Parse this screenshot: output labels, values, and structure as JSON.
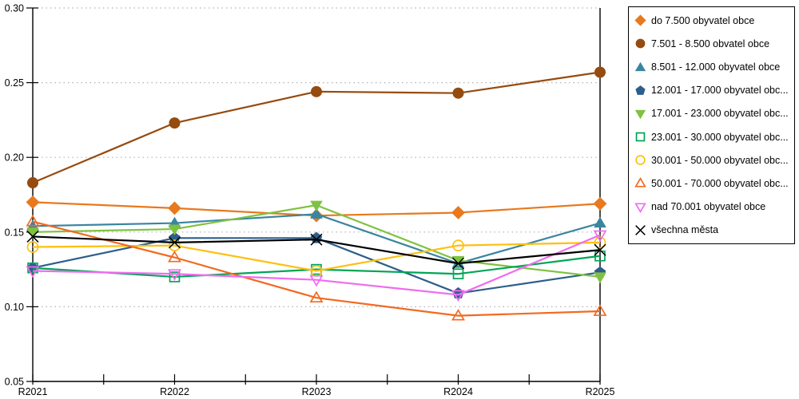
{
  "chart_data": {
    "type": "line",
    "title": "",
    "xlabel": "",
    "ylabel": "",
    "x_categories": [
      "R2021",
      "R2022",
      "R2023",
      "R2024",
      "R2025"
    ],
    "y_axis": {
      "min": 0.05,
      "max": 0.3,
      "tick_step": 0.05,
      "tick_labels": [
        "0.05",
        "0.10",
        "0.15",
        "0.20",
        "0.25",
        "0.30"
      ]
    },
    "grid": "horizontal-dotted",
    "grid_color": "#b0b0b0",
    "axis_color": "#000000",
    "legend_position": "outside-top-right",
    "series": [
      {
        "label": "do 7.500 obyvatel obce",
        "color": "#E8791E",
        "marker": "diamond",
        "fill": "filled",
        "values": [
          0.17,
          0.166,
          0.161,
          0.163,
          0.169
        ]
      },
      {
        "label": "7.501 - 8.500 obvatel obce",
        "color": "#964B0F",
        "marker": "circle",
        "fill": "filled",
        "values": [
          0.183,
          0.223,
          0.244,
          0.243,
          0.257
        ]
      },
      {
        "label": "8.501 - 12.000 obyvatel obce",
        "color": "#3A86A0",
        "marker": "triangle-up",
        "fill": "filled",
        "values": [
          0.154,
          0.156,
          0.162,
          0.129,
          0.156
        ]
      },
      {
        "label": "12.001 - 17.000 obyvatel obc...",
        "color": "#2D5E8C",
        "marker": "pentagon",
        "fill": "filled",
        "values": [
          0.126,
          0.146,
          0.146,
          0.109,
          0.123
        ]
      },
      {
        "label": "17.001 - 23.000 obyvatel obc...",
        "color": "#7FC241",
        "marker": "triangle-down",
        "fill": "filled",
        "values": [
          0.15,
          0.152,
          0.168,
          0.131,
          0.12
        ]
      },
      {
        "label": "23.001 - 30.000 obyvatel obc...",
        "color": "#00A556",
        "marker": "square",
        "fill": "hollow",
        "values": [
          0.126,
          0.12,
          0.125,
          0.122,
          0.134
        ]
      },
      {
        "label": "30.001 - 50.000 obyvatel obc...",
        "color": "#FDC010",
        "marker": "circle",
        "fill": "hollow",
        "values": [
          0.14,
          0.141,
          0.124,
          0.141,
          0.143
        ]
      },
      {
        "label": "50.001 - 70.000 obyvatel obc...",
        "color": "#F26A1F",
        "marker": "triangle-up",
        "fill": "hollow",
        "values": [
          0.157,
          0.133,
          0.106,
          0.094,
          0.097
        ]
      },
      {
        "label": "nad 70.001 obyvatel obce",
        "color": "#EF6CEF",
        "marker": "triangle-down",
        "fill": "hollow",
        "values": [
          0.124,
          0.122,
          0.118,
          0.108,
          0.148
        ]
      },
      {
        "label": "všechna města",
        "color": "#000000",
        "marker": "x",
        "fill": "line",
        "values": [
          0.147,
          0.143,
          0.145,
          0.129,
          0.138
        ]
      }
    ]
  }
}
